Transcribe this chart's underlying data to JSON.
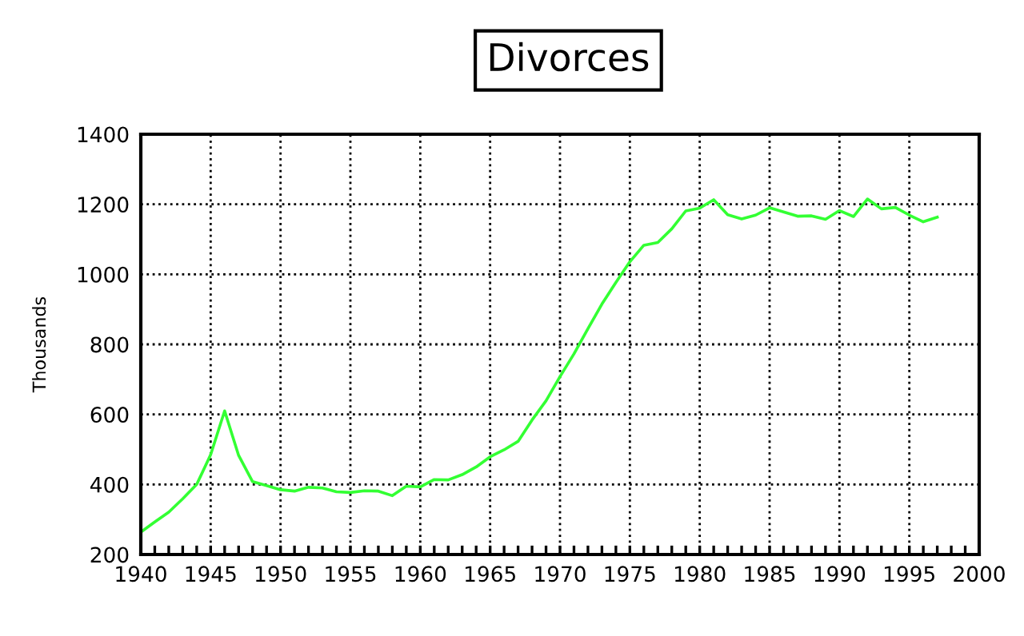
{
  "chart_data": {
    "type": "line",
    "title": "Divorces",
    "ylabel": "Thousands",
    "x": [
      1940,
      1941,
      1942,
      1943,
      1944,
      1945,
      1946,
      1947,
      1948,
      1949,
      1950,
      1951,
      1952,
      1953,
      1954,
      1955,
      1956,
      1957,
      1958,
      1959,
      1960,
      1961,
      1962,
      1963,
      1964,
      1965,
      1966,
      1967,
      1968,
      1969,
      1970,
      1971,
      1972,
      1973,
      1974,
      1975,
      1976,
      1977,
      1978,
      1979,
      1980,
      1981,
      1982,
      1983,
      1984,
      1985,
      1986,
      1987,
      1988,
      1989,
      1990,
      1991,
      1992,
      1993,
      1994,
      1995,
      1996,
      1997
    ],
    "series": [
      {
        "color": "#33ff33",
        "values": [
          264,
          293,
          321,
          359,
          400,
          485,
          610,
          483,
          408,
          397,
          385,
          381,
          392,
          390,
          379,
          377,
          382,
          381,
          368,
          395,
          393,
          414,
          413,
          428,
          450,
          479,
          499,
          523,
          584,
          639,
          708,
          773,
          845,
          915,
          977,
          1036,
          1083,
          1091,
          1130,
          1181,
          1189,
          1213,
          1170,
          1158,
          1169,
          1190,
          1178,
          1166,
          1167,
          1157,
          1182,
          1165,
          1215,
          1187,
          1191,
          1169,
          1150,
          1163
        ]
      }
    ],
    "xlim": [
      1940,
      2000
    ],
    "xticks": [
      1940,
      1945,
      1950,
      1955,
      1960,
      1965,
      1970,
      1975,
      1980,
      1985,
      1990,
      1995,
      2000
    ],
    "ylim": [
      200,
      1400
    ],
    "yticks": [
      200,
      400,
      600,
      800,
      1000,
      1200,
      1400
    ],
    "grid": true,
    "legend": false,
    "marker": "none",
    "line_style": "solid"
  }
}
